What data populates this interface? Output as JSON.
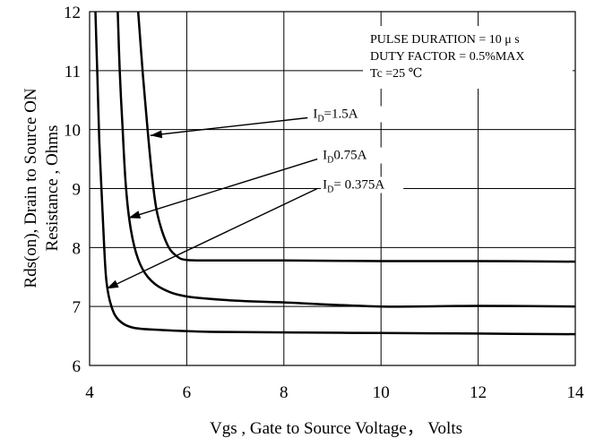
{
  "chart_data": {
    "type": "line",
    "title": "",
    "xlabel": "Vgs , Gate to Source Voltage， Volts",
    "ylabel_line1": "Rds(on), Drain to Source ON",
    "ylabel_line2": "Resistance , Ohms",
    "xlim": [
      4,
      14
    ],
    "ylim": [
      6,
      12
    ],
    "xticks": [
      "4",
      "6",
      "8",
      "10",
      "12",
      "14"
    ],
    "yticks": [
      "6",
      "7",
      "8",
      "9",
      "10",
      "11",
      "12"
    ],
    "grid": true,
    "conditions": [
      "PULSE    DURATION = 10 μ s",
      "DUTY    FACTOR = 0.5%MAX",
      "Tc =25  ℃"
    ],
    "series": [
      {
        "name": "ID=1.5A",
        "label_main": "I",
        "label_sub": "D",
        "label_rest": "=1.5A",
        "label_at": [
          8.6,
          10.2
        ],
        "arrow_to": [
          5.25,
          9.9
        ],
        "x": [
          5.0,
          5.1,
          5.2,
          5.3,
          5.4,
          5.6,
          5.8,
          6.0,
          6.5,
          8,
          10,
          12,
          14
        ],
        "y": [
          12.0,
          10.9,
          9.95,
          9.1,
          8.55,
          8.05,
          7.85,
          7.79,
          7.78,
          7.78,
          7.77,
          7.77,
          7.76
        ]
      },
      {
        "name": "ID0.75A",
        "label_main": "I",
        "label_sub": "D",
        "label_rest": "0.75A",
        "label_at": [
          8.8,
          9.5
        ],
        "arrow_to": [
          4.8,
          8.5
        ],
        "x": [
          4.58,
          4.62,
          4.68,
          4.75,
          4.85,
          5.0,
          5.2,
          5.5,
          6.0,
          7,
          8,
          10,
          12,
          14
        ],
        "y": [
          12.0,
          11.0,
          10.0,
          9.0,
          8.3,
          7.8,
          7.5,
          7.3,
          7.17,
          7.1,
          7.07,
          7.0,
          7.01,
          7.0
        ]
      },
      {
        "name": "ID= 0.375A",
        "label_main": "I",
        "label_sub": "D",
        "label_rest": "= 0.375A",
        "label_at": [
          8.8,
          9.0
        ],
        "arrow_to": [
          4.35,
          7.3
        ],
        "x": [
          4.12,
          4.16,
          4.2,
          4.25,
          4.3,
          4.35,
          4.45,
          4.6,
          4.9,
          5.5,
          6.5,
          8,
          10,
          12,
          14
        ],
        "y": [
          12.0,
          10.9,
          9.8,
          8.9,
          8.0,
          7.4,
          7.0,
          6.77,
          6.64,
          6.6,
          6.57,
          6.56,
          6.55,
          6.54,
          6.53
        ]
      }
    ]
  }
}
